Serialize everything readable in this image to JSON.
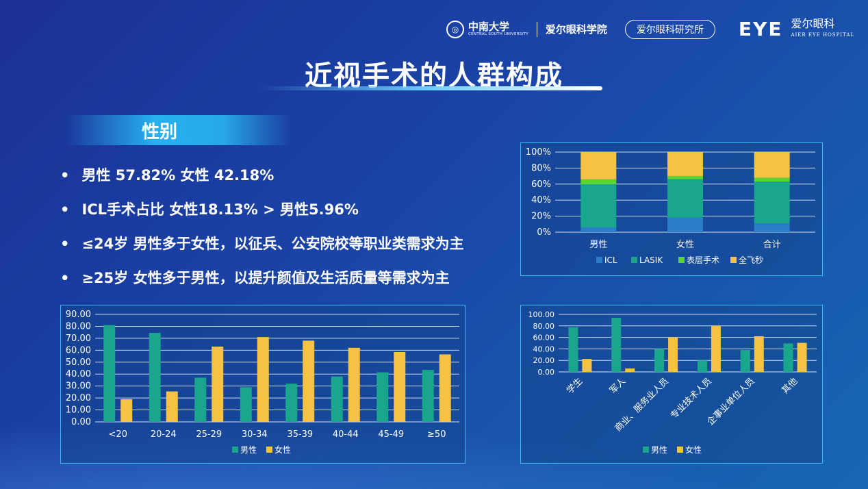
{
  "header": {
    "university": "中南大学",
    "university_en": "CENTRAL SOUTH UNIVERSITY",
    "school": "爱尔眼科学院",
    "institute": "爱尔眼科研究所",
    "brand_mark": "EYE",
    "brand": "爱尔眼科",
    "brand_en": "AIER EYE HOSPITAL"
  },
  "title": "近视手术的人群构成",
  "section": "性别",
  "bullets": [
    "男性 57.82% 女性 42.18%",
    "ICL手术占比  女性18.13% > 男性5.96%",
    "≤24岁 男性多于女性，以征兵、公安院校等职业类需求为主",
    "≥25岁 女性多于男性，以提升颜值及生活质量等需求为主"
  ],
  "colors": {
    "teal": "#1aa68c",
    "yellow": "#f5c244",
    "blue": "#2a7dc6",
    "green": "#5bd62e"
  },
  "chart_data": [
    {
      "type": "bar",
      "stacked": true,
      "percent": true,
      "categories": [
        "男性",
        "女性",
        "合计"
      ],
      "ylim": [
        0,
        100
      ],
      "ticks": [
        "0%",
        "20%",
        "40%",
        "60%",
        "80%",
        "100%"
      ],
      "legend": "bottom",
      "series": [
        {
          "name": "ICL",
          "color": "#2a7dc6",
          "values": [
            5.96,
            18.13,
            11
          ]
        },
        {
          "name": "LASIK",
          "color": "#1aa68c",
          "values": [
            54,
            48,
            52
          ]
        },
        {
          "name": "表层手术",
          "color": "#5bd62e",
          "values": [
            6,
            4,
            5
          ]
        },
        {
          "name": "全飞秒",
          "color": "#f5c244",
          "values": [
            34.04,
            29.87,
            32
          ]
        }
      ]
    },
    {
      "type": "bar",
      "categories": [
        "<20",
        "20-24",
        "25-29",
        "30-34",
        "35-39",
        "40-44",
        "45-49",
        "≥50"
      ],
      "ylim": [
        0,
        90
      ],
      "ticks": [
        "0.00",
        "10.00",
        "20.00",
        "30.00",
        "40.00",
        "50.00",
        "60.00",
        "70.00",
        "80.00",
        "90.00"
      ],
      "legend": "bottom",
      "series": [
        {
          "name": "男性",
          "color": "#1aa68c",
          "values": [
            81,
            74.5,
            37,
            29,
            32,
            38,
            41.5,
            43.5
          ]
        },
        {
          "name": "女性",
          "color": "#f5c244",
          "values": [
            19,
            25.5,
            63,
            71,
            68,
            62,
            58.5,
            56.5
          ]
        }
      ]
    },
    {
      "type": "bar",
      "categories": [
        "学生",
        "军人",
        "商业、服务业人员",
        "专业技术人员",
        "企事业单位人员",
        "其他"
      ],
      "ylim": [
        0,
        100
      ],
      "ticks": [
        "0.00",
        "20.00",
        "40.00",
        "60.00",
        "80.00",
        "100.00"
      ],
      "legend": "bottom",
      "series": [
        {
          "name": "男性",
          "color": "#1aa68c",
          "values": [
            77.5,
            94,
            40,
            20,
            38,
            49.5
          ]
        },
        {
          "name": "女性",
          "color": "#f5c244",
          "values": [
            22.5,
            6,
            60,
            80,
            62,
            50.5
          ]
        }
      ]
    }
  ]
}
